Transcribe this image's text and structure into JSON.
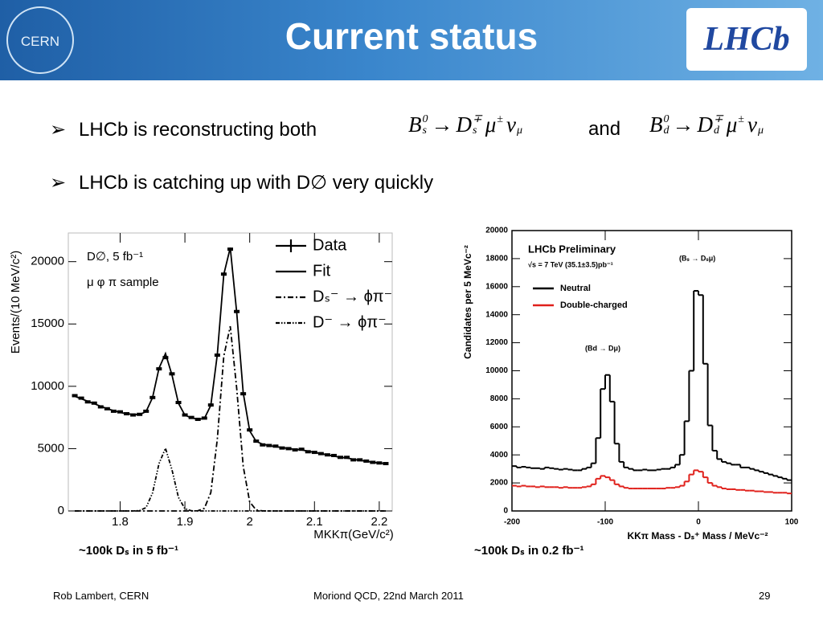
{
  "header": {
    "title": "Current status",
    "logos": {
      "left": "CERN",
      "right": "LHCb"
    }
  },
  "bullets": [
    {
      "text": "LHCb is reconstructing both",
      "joiner": "and",
      "formulas": [
        [
          {
            "base": "B",
            "sup": "0",
            "sub": "s"
          },
          {
            "base": "→"
          },
          {
            "base": "D",
            "sup": "∓",
            "sub": "s"
          },
          {
            "base": "μ",
            "sup": "±"
          },
          {
            "base": "ν",
            "sub": "μ"
          }
        ],
        [
          {
            "base": "B",
            "sup": "0",
            "sub": "d"
          },
          {
            "base": "→"
          },
          {
            "base": "D",
            "sup": "∓",
            "sub": "d"
          },
          {
            "base": "μ",
            "sup": "±"
          },
          {
            "base": "ν",
            "sub": "μ"
          }
        ]
      ]
    },
    {
      "text": "LHCb is catching up with D∅ very quickly"
    }
  ],
  "captions": [
    "~100k Dₛ in 5 fb⁻¹",
    "~100k Dₛ in 0.2 fb⁻¹"
  ],
  "footer": {
    "author": "Rob Lambert, CERN",
    "event": "Moriond QCD, 22nd March 2011",
    "page": 29
  },
  "chart_data": [
    {
      "type": "line",
      "x_label": "MKKπ(GeV/c²)",
      "y_label": "Events/(10 MeV/c²)",
      "annotations": [
        "D∅, 5 fb⁻¹",
        "μ φ π sample"
      ],
      "xlim": [
        1.72,
        2.22
      ],
      "xticks": [
        1.8,
        1.9,
        2,
        2.1,
        2.2
      ],
      "ylim": [
        0,
        22300
      ],
      "yticks": [
        0,
        5000,
        10000,
        15000,
        20000
      ],
      "legend": "upper right",
      "x": [
        1.73,
        1.74,
        1.75,
        1.76,
        1.77,
        1.78,
        1.79,
        1.8,
        1.81,
        1.82,
        1.83,
        1.84,
        1.85,
        1.86,
        1.87,
        1.88,
        1.89,
        1.9,
        1.91,
        1.92,
        1.93,
        1.94,
        1.95,
        1.96,
        1.97,
        1.98,
        1.99,
        2,
        2.01,
        2.02,
        2.03,
        2.04,
        2.05,
        2.06,
        2.07,
        2.08,
        2.09,
        2.1,
        2.11,
        2.12,
        2.13,
        2.14,
        2.15,
        2.16,
        2.17,
        2.18,
        2.19,
        2.2,
        2.21
      ],
      "series": [
        {
          "name": "Data",
          "color": "#000000",
          "style": "points",
          "values": [
            9250,
            9050,
            8750,
            8650,
            8350,
            8200,
            8000,
            7950,
            7800,
            7700,
            7750,
            8000,
            9100,
            11400,
            12300,
            11000,
            8700,
            7700,
            7500,
            7350,
            7450,
            8500,
            12500,
            19000,
            21000,
            16000,
            9400,
            6500,
            5600,
            5300,
            5250,
            5200,
            5050,
            5000,
            4900,
            4950,
            4750,
            4700,
            4600,
            4500,
            4450,
            4300,
            4300,
            4100,
            4100,
            4000,
            3900,
            3850,
            3800
          ]
        },
        {
          "name": "Fit",
          "color": "#000000",
          "style": "solid",
          "values": [
            9200,
            9000,
            8800,
            8600,
            8400,
            8200,
            8050,
            7900,
            7800,
            7750,
            7730,
            7970,
            9090,
            11450,
            12630,
            10910,
            8640,
            7680,
            7465,
            7366,
            7410,
            8475,
            12550,
            18970,
            21120,
            15900,
            9480,
            6425,
            5580,
            5355,
            5250,
            5150,
            5100,
            5000,
            4950,
            4900,
            4800,
            4700,
            4600,
            4500,
            4400,
            4300,
            4250,
            4150,
            4050,
            4000,
            3900,
            3850,
            3800
          ]
        },
        {
          "name": "Dₛ⁻ → ϕπ⁻",
          "color": "#000000",
          "style": "dashdot",
          "values": [
            0,
            0,
            0,
            0,
            0,
            0,
            0,
            0,
            0,
            0,
            0,
            0,
            0,
            0,
            0,
            0,
            0,
            0,
            0,
            16,
            210,
            1475,
            5750,
            12420,
            14820,
            9800,
            3580,
            725,
            80,
            5,
            0,
            0,
            0,
            0,
            0,
            0,
            0,
            0,
            0,
            0,
            0,
            0,
            0,
            0,
            0,
            0,
            0,
            0,
            0
          ]
        },
        {
          "name": "D⁻ → ϕπ⁻",
          "color": "#000000",
          "style": "dashdotdot",
          "values": [
            0,
            0,
            0,
            0,
            0,
            0,
            0,
            0,
            0,
            0,
            30,
            270,
            1440,
            3800,
            5030,
            3310,
            1090,
            180,
            15,
            0,
            0,
            0,
            0,
            0,
            0,
            0,
            0,
            0,
            0,
            0,
            0,
            0,
            0,
            0,
            0,
            0,
            0,
            0,
            0,
            0,
            0,
            0,
            0,
            0,
            0,
            0,
            0,
            0,
            0
          ]
        }
      ]
    },
    {
      "type": "histogram",
      "x_label": "KKπ Mass - Dₛ⁺ Mass / MeVc⁻²",
      "y_label": "Candidates per 5 MeVc⁻²",
      "annotations": [
        "LHCb Preliminary",
        "√s = 7 TeV (35.1±3.5)pb⁻¹",
        "(Bₛ → Dₛμ)",
        "(Bd → Dμ)"
      ],
      "xlim": [
        -200,
        100
      ],
      "xticks": [
        -200,
        -100,
        0,
        100
      ],
      "ylim": [
        0,
        20000
      ],
      "yticks": [
        0,
        2000,
        4000,
        6000,
        8000,
        10000,
        12000,
        14000,
        16000,
        18000,
        20000
      ],
      "legend": "upper left",
      "bins": [
        -200,
        -195,
        -190,
        -185,
        -180,
        -175,
        -170,
        -165,
        -160,
        -155,
        -150,
        -145,
        -140,
        -135,
        -130,
        -125,
        -120,
        -115,
        -110,
        -105,
        -100,
        -95,
        -90,
        -85,
        -80,
        -75,
        -70,
        -65,
        -60,
        -55,
        -50,
        -45,
        -40,
        -35,
        -30,
        -25,
        -20,
        -15,
        -10,
        -5,
        0,
        5,
        10,
        15,
        20,
        25,
        30,
        35,
        40,
        45,
        50,
        55,
        60,
        65,
        70,
        75,
        80,
        85,
        90,
        95,
        100
      ],
      "series": [
        {
          "name": "Neutral",
          "color": "#000000",
          "values": [
            3200,
            3100,
            3150,
            3100,
            3050,
            3050,
            3000,
            3100,
            3050,
            3000,
            2950,
            3000,
            2950,
            2900,
            2900,
            3000,
            3100,
            3400,
            5200,
            8700,
            9700,
            7800,
            4800,
            3500,
            3100,
            3000,
            2900,
            2900,
            2950,
            2900,
            2900,
            2950,
            3000,
            3000,
            3100,
            3300,
            4000,
            6400,
            10000,
            15700,
            15400,
            10500,
            6100,
            4300,
            3700,
            3500,
            3400,
            3300,
            3300,
            3100,
            3100,
            3000,
            2900,
            2800,
            2700,
            2600,
            2500,
            2400,
            2300,
            2200
          ]
        },
        {
          "name": "Double-charged",
          "color": "#e0201b",
          "values": [
            1800,
            1750,
            1800,
            1750,
            1750,
            1700,
            1750,
            1700,
            1700,
            1700,
            1650,
            1700,
            1650,
            1650,
            1650,
            1700,
            1750,
            1900,
            2300,
            2500,
            2400,
            2200,
            1900,
            1750,
            1650,
            1600,
            1600,
            1600,
            1600,
            1600,
            1600,
            1600,
            1600,
            1650,
            1650,
            1700,
            1800,
            2100,
            2600,
            2900,
            2800,
            2400,
            2000,
            1800,
            1700,
            1600,
            1550,
            1550,
            1500,
            1500,
            1450,
            1450,
            1400,
            1400,
            1350,
            1350,
            1300,
            1300,
            1300,
            1250
          ]
        }
      ]
    }
  ]
}
